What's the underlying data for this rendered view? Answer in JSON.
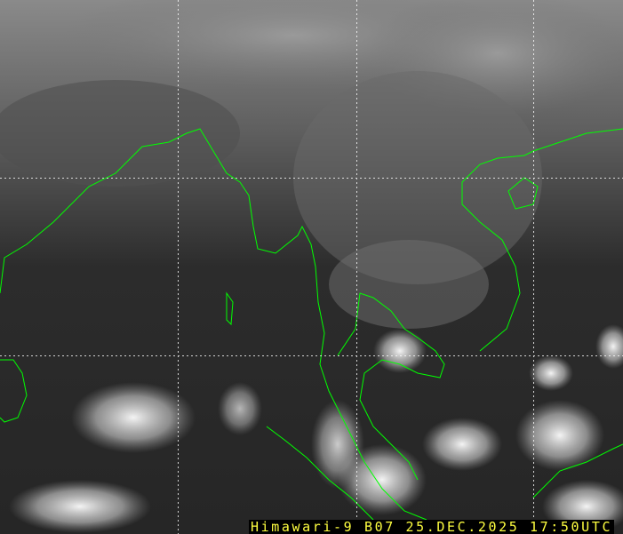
{
  "caption": "Himawari-9 B07 25.DEC.2025 17:50UTC",
  "colors": {
    "coastline": "#00ff00",
    "caption_text": "#ffff40",
    "grid": "#ffffff"
  }
}
